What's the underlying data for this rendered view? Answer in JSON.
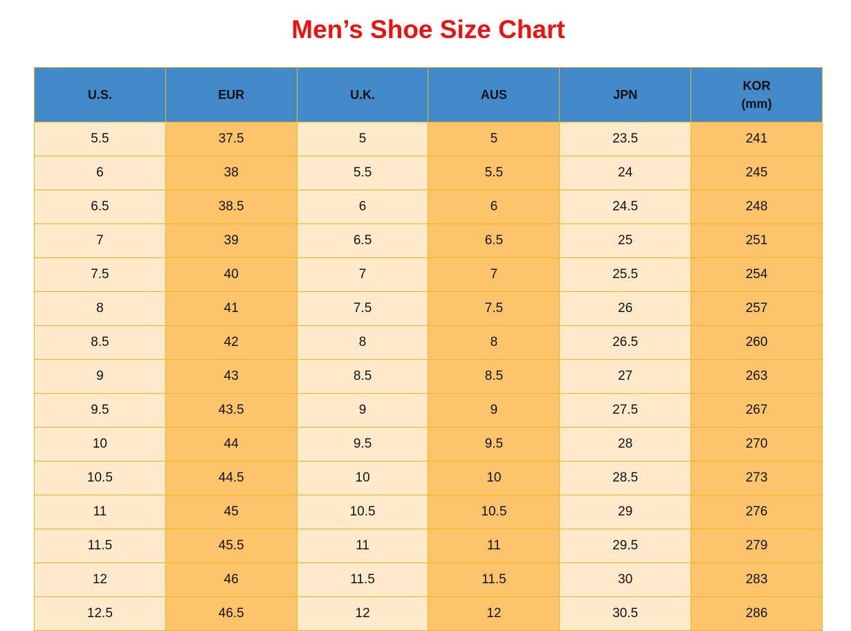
{
  "title": "Men’s Shoe Size Chart",
  "colors": {
    "title": "#ee1111",
    "header": "#428aca",
    "light_column": "#feeacb",
    "dark_column": "#fdc46b",
    "border": "#f3b31b"
  },
  "headers": [
    [
      "U.S."
    ],
    [
      "EUR"
    ],
    [
      "U.K."
    ],
    [
      "AUS"
    ],
    [
      "JPN"
    ],
    [
      "KOR",
      "(mm)"
    ]
  ],
  "rows": [
    [
      "5.5",
      "37.5",
      "5",
      "5",
      "23.5",
      "241"
    ],
    [
      "6",
      "38",
      "5.5",
      "5.5",
      "24",
      "245"
    ],
    [
      "6.5",
      "38.5",
      "6",
      "6",
      "24.5",
      "248"
    ],
    [
      "7",
      "39",
      "6.5",
      "6.5",
      "25",
      "251"
    ],
    [
      "7.5",
      "40",
      "7",
      "7",
      "25.5",
      "254"
    ],
    [
      "8",
      "41",
      "7.5",
      "7.5",
      "26",
      "257"
    ],
    [
      "8.5",
      "42",
      "8",
      "8",
      "26.5",
      "260"
    ],
    [
      "9",
      "43",
      "8.5",
      "8.5",
      "27",
      "263"
    ],
    [
      "9.5",
      "43.5",
      "9",
      "9",
      "27.5",
      "267"
    ],
    [
      "10",
      "44",
      "9.5",
      "9.5",
      "28",
      "270"
    ],
    [
      "10.5",
      "44.5",
      "10",
      "10",
      "28.5",
      "273"
    ],
    [
      "11",
      "45",
      "10.5",
      "10.5",
      "29",
      "276"
    ],
    [
      "11.5",
      "45.5",
      "11",
      "11",
      "29.5",
      "279"
    ],
    [
      "12",
      "46",
      "11.5",
      "11.5",
      "30",
      "283"
    ],
    [
      "12.5",
      "46.5",
      "12",
      "12",
      "30.5",
      "286"
    ]
  ]
}
